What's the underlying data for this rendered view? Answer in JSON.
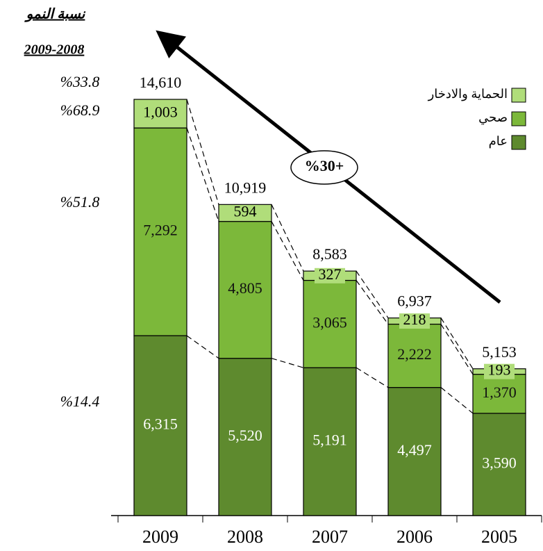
{
  "chart_data": {
    "type": "stacked_bar",
    "header": {
      "title": "نسبة النمو",
      "subtitle": "2009-2008"
    },
    "growth_labels": [
      "%33.8",
      "%68.9",
      "%51.8",
      "%14.4"
    ],
    "annotation": "%30+",
    "categories": [
      "2009",
      "2008",
      "2007",
      "2006",
      "2005"
    ],
    "series": [
      {
        "name": "عام",
        "color": "#5e8a2e",
        "values": [
          6315,
          5520,
          5191,
          4497,
          3590
        ],
        "value_labels": [
          "6,315",
          "5,520",
          "5,191",
          "4,497",
          "3,590"
        ]
      },
      {
        "name": "صحي",
        "color": "#7cb83a",
        "values": [
          7292,
          4805,
          3065,
          2222,
          1370
        ],
        "value_labels": [
          "7,292",
          "4,805",
          "3,065",
          "2,222",
          "1,370"
        ]
      },
      {
        "name": "الحماية والادخار",
        "color": "#b0dd7a",
        "values": [
          1003,
          594,
          327,
          218,
          193
        ],
        "value_labels": [
          "1,003",
          "594",
          "327",
          "218",
          "193"
        ]
      }
    ],
    "totals": [
      14610,
      10919,
      8583,
      6937,
      5153
    ],
    "total_labels": [
      "14,610",
      "10,919",
      "8,583",
      "6,937",
      "5,153"
    ],
    "ylim": [
      0,
      15000
    ]
  }
}
